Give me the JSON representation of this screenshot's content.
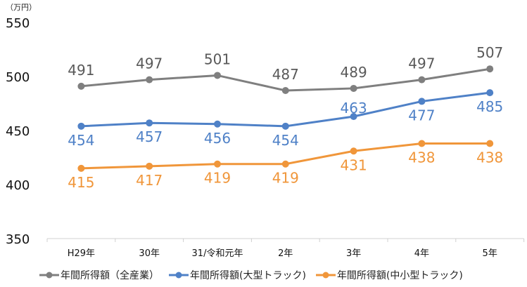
{
  "chart_data": {
    "type": "line",
    "unit_label": "（万円）",
    "categories": [
      "H29年",
      "30年",
      "31/令和元年",
      "2年",
      "3年",
      "4年",
      "5年"
    ],
    "ylim": [
      350,
      550
    ],
    "yticks": [
      350,
      400,
      450,
      500,
      550
    ],
    "grid": false,
    "legend_position": "bottom",
    "series": [
      {
        "name": "年間所得額（全産業）",
        "color": "#7f7f7f",
        "values": [
          491,
          497,
          501,
          487,
          489,
          497,
          507
        ]
      },
      {
        "name": "年間所得額(大型トラック)",
        "color": "#4f81c7",
        "values": [
          454,
          457,
          456,
          454,
          463,
          477,
          485
        ]
      },
      {
        "name": "年間所得額(中小型トラック)",
        "color": "#f0963a",
        "values": [
          415,
          417,
          419,
          419,
          431,
          438,
          438
        ]
      }
    ]
  }
}
